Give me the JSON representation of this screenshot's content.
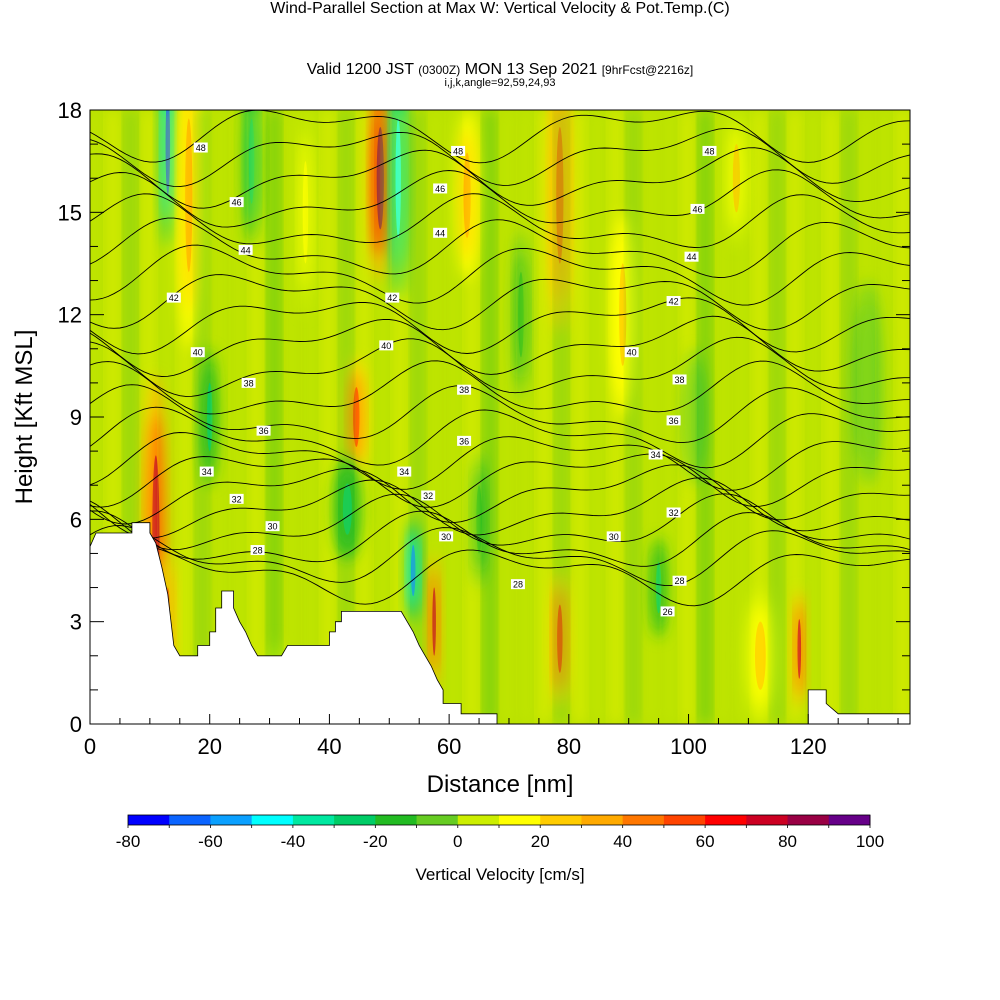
{
  "header": {
    "title": "Wind-Parallel Section at Max W: Vertical Velocity & Pot.Temp.",
    "copyright_mark": "(C)",
    "valid_prefix": "Valid 1200 JST",
    "valid_zulu": "(0300Z)",
    "valid_date": "MON 13 Sep 2021",
    "forecast_tag": "[9hrFcst@2216z]",
    "grid_info": "i,j,k,angle=92,59,24,93"
  },
  "chart_data": {
    "type": "heatmap",
    "xlabel": "Distance [nm]",
    "ylabel": "Height [Kft MSL]",
    "xlim": [
      0,
      137
    ],
    "ylim": [
      0,
      18
    ],
    "x_ticks": [
      0,
      20,
      40,
      60,
      80,
      100,
      120
    ],
    "y_ticks": [
      0,
      3,
      6,
      9,
      12,
      15,
      18
    ],
    "x_minor_step": 5,
    "y_minor_step": 1,
    "field": "Vertical Velocity",
    "colorbar": {
      "title": "Vertical Velocity [cm/s]",
      "levels": [
        -80,
        -70,
        -60,
        -50,
        -40,
        -30,
        -20,
        -10,
        0,
        10,
        20,
        30,
        40,
        50,
        60,
        70,
        80,
        90,
        100
      ],
      "tick_labels": [
        "-80",
        "-60",
        "-40",
        "-20",
        "0",
        "20",
        "40",
        "60",
        "80",
        "100"
      ],
      "colors": [
        "#0000ff",
        "#0a64ff",
        "#0aa0ff",
        "#00ffff",
        "#00e8a0",
        "#00cc66",
        "#22bb22",
        "#66cc22",
        "#ccee00",
        "#ffff00",
        "#ffcc00",
        "#ffaa00",
        "#ff7700",
        "#ff4400",
        "#ff0000",
        "#cc0022",
        "#990044",
        "#660088"
      ]
    },
    "terrain": [
      [
        0,
        5.2
      ],
      [
        1,
        5.6
      ],
      [
        7,
        5.6
      ],
      [
        7,
        5.9
      ],
      [
        10,
        5.9
      ],
      [
        10,
        5.6
      ],
      [
        11,
        5.3
      ],
      [
        12,
        4.6
      ],
      [
        13,
        3.8
      ],
      [
        14,
        2.3
      ],
      [
        15,
        2.0
      ],
      [
        18,
        2.0
      ],
      [
        18,
        2.3
      ],
      [
        20,
        2.3
      ],
      [
        20,
        2.7
      ],
      [
        21,
        2.7
      ],
      [
        21,
        3.4
      ],
      [
        22,
        3.4
      ],
      [
        22,
        3.9
      ],
      [
        24,
        3.9
      ],
      [
        24,
        3.4
      ],
      [
        25,
        3.0
      ],
      [
        26,
        2.7
      ],
      [
        27,
        2.3
      ],
      [
        28,
        2.0
      ],
      [
        32,
        2.0
      ],
      [
        33,
        2.3
      ],
      [
        40,
        2.3
      ],
      [
        40,
        2.7
      ],
      [
        41,
        2.7
      ],
      [
        41,
        3.0
      ],
      [
        42,
        3.0
      ],
      [
        42,
        3.3
      ],
      [
        52,
        3.3
      ],
      [
        53,
        3.0
      ],
      [
        54,
        2.7
      ],
      [
        55,
        2.3
      ],
      [
        56,
        2.0
      ],
      [
        57,
        1.7
      ],
      [
        58,
        1.3
      ],
      [
        59,
        1.0
      ],
      [
        59,
        0.6
      ],
      [
        62,
        0.6
      ],
      [
        62,
        0.3
      ],
      [
        68,
        0.3
      ],
      [
        68,
        0
      ],
      [
        118,
        0
      ],
      [
        118,
        0
      ],
      [
        120,
        0
      ],
      [
        120,
        1.0
      ],
      [
        123,
        1.0
      ],
      [
        123,
        0.6
      ],
      [
        125,
        0.3
      ],
      [
        137,
        0.3
      ]
    ],
    "vv_cells": [
      {
        "x": 11,
        "y": 5.5,
        "w": 4,
        "h": 9.5,
        "v": 75
      },
      {
        "x": 13,
        "y": 17,
        "w": 2.5,
        "h": 6,
        "v": -65
      },
      {
        "x": 16.5,
        "y": 15.5,
        "w": 4,
        "h": 9,
        "v": 30
      },
      {
        "x": 20,
        "y": 9,
        "w": 3,
        "h": 4,
        "v": -25
      },
      {
        "x": 13,
        "y": 3,
        "w": 2.5,
        "h": 4,
        "v": 50
      },
      {
        "x": 27,
        "y": 16.5,
        "w": 3,
        "h": 5,
        "v": -30
      },
      {
        "x": 44.5,
        "y": 9,
        "w": 3.5,
        "h": 3.5,
        "v": 55
      },
      {
        "x": 48.5,
        "y": 16,
        "w": 4,
        "h": 6,
        "v": 80
      },
      {
        "x": 51.5,
        "y": 16,
        "w": 3,
        "h": 7,
        "v": -45
      },
      {
        "x": 54,
        "y": 4.5,
        "w": 2.5,
        "h": 3,
        "v": -60
      },
      {
        "x": 57.5,
        "y": 3,
        "w": 2,
        "h": 4,
        "v": 75
      },
      {
        "x": 43,
        "y": 6.3,
        "w": 5,
        "h": 3,
        "v": -25
      },
      {
        "x": 78.5,
        "y": 15.5,
        "w": 4,
        "h": 8,
        "v": 45
      },
      {
        "x": 78.5,
        "y": 2.5,
        "w": 3,
        "h": 4,
        "v": 55
      },
      {
        "x": 63,
        "y": 15.5,
        "w": 4,
        "h": 5,
        "v": 30
      },
      {
        "x": 65,
        "y": 6,
        "w": 3,
        "h": 4,
        "v": -15
      },
      {
        "x": 89,
        "y": 12,
        "w": 4,
        "h": 6,
        "v": 25
      },
      {
        "x": 95,
        "y": 4,
        "w": 3,
        "h": 3,
        "v": -25
      },
      {
        "x": 112,
        "y": 2,
        "w": 6,
        "h": 4,
        "v": 20
      },
      {
        "x": 118.5,
        "y": 2.2,
        "w": 2,
        "h": 3.5,
        "v": 75
      },
      {
        "x": 108,
        "y": 16,
        "w": 4,
        "h": 4,
        "v": 20
      },
      {
        "x": 31,
        "y": 1,
        "w": 3,
        "h": 3,
        "v": 20
      },
      {
        "x": 36,
        "y": 15,
        "w": 3,
        "h": 6,
        "v": 15
      },
      {
        "x": 72,
        "y": 12,
        "w": 3,
        "h": 5,
        "v": -15
      },
      {
        "x": 101,
        "y": 9,
        "w": 4,
        "h": 4,
        "v": -10
      },
      {
        "x": 130,
        "y": 10,
        "w": 5,
        "h": 6,
        "v": -10
      }
    ],
    "contour_labels": [
      {
        "text": "48",
        "x": 18.5,
        "y": 16.9
      },
      {
        "text": "48",
        "x": 61.5,
        "y": 16.8
      },
      {
        "text": "48",
        "x": 103.5,
        "y": 16.8
      },
      {
        "text": "46",
        "x": 24.5,
        "y": 15.3
      },
      {
        "text": "46",
        "x": 58.5,
        "y": 15.7
      },
      {
        "text": "46",
        "x": 101.5,
        "y": 15.1
      },
      {
        "text": "44",
        "x": 26,
        "y": 13.9
      },
      {
        "text": "44",
        "x": 58.5,
        "y": 14.4
      },
      {
        "text": "44",
        "x": 100.5,
        "y": 13.7
      },
      {
        "text": "42",
        "x": 14,
        "y": 12.5
      },
      {
        "text": "42",
        "x": 50.5,
        "y": 12.5
      },
      {
        "text": "42",
        "x": 97.5,
        "y": 12.4
      },
      {
        "text": "40",
        "x": 18,
        "y": 10.9
      },
      {
        "text": "40",
        "x": 49.5,
        "y": 11.1
      },
      {
        "text": "40",
        "x": 90.5,
        "y": 10.9
      },
      {
        "text": "38",
        "x": 26.5,
        "y": 10.0
      },
      {
        "text": "38",
        "x": 62.5,
        "y": 9.8
      },
      {
        "text": "38",
        "x": 98.5,
        "y": 10.1
      },
      {
        "text": "36",
        "x": 29,
        "y": 8.6
      },
      {
        "text": "36",
        "x": 62.5,
        "y": 8.3
      },
      {
        "text": "36",
        "x": 97.5,
        "y": 8.9
      },
      {
        "text": "34",
        "x": 19.5,
        "y": 7.4
      },
      {
        "text": "34",
        "x": 52.5,
        "y": 7.4
      },
      {
        "text": "34",
        "x": 94.5,
        "y": 7.9
      },
      {
        "text": "32",
        "x": 24.5,
        "y": 6.6
      },
      {
        "text": "32",
        "x": 56.5,
        "y": 6.7
      },
      {
        "text": "32",
        "x": 97.5,
        "y": 6.2
      },
      {
        "text": "30",
        "x": 30.5,
        "y": 5.8
      },
      {
        "text": "30",
        "x": 59.5,
        "y": 5.5
      },
      {
        "text": "30",
        "x": 87.5,
        "y": 5.5
      },
      {
        "text": "28",
        "x": 28,
        "y": 5.1
      },
      {
        "text": "28",
        "x": 71.5,
        "y": 4.1
      },
      {
        "text": "28",
        "x": 98.5,
        "y": 4.2
      },
      {
        "text": "26",
        "x": 96.5,
        "y": 3.3
      }
    ]
  }
}
